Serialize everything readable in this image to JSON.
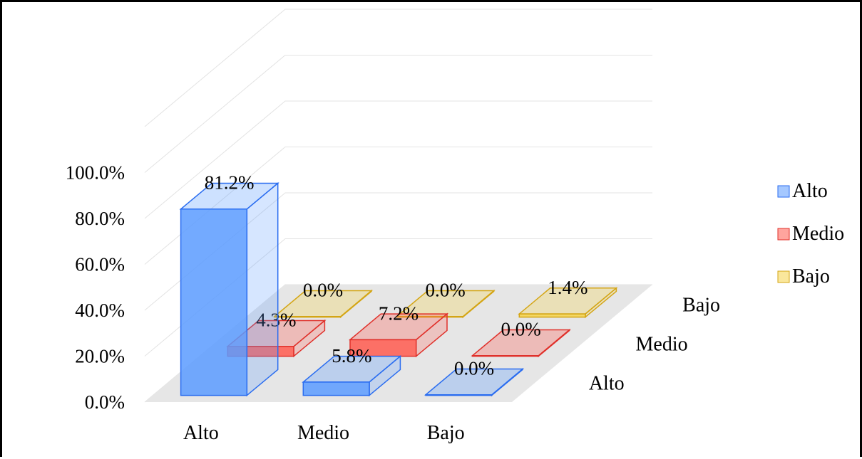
{
  "chart_data": {
    "type": "bar",
    "subtype": "3d-clustered",
    "title": "",
    "x_categories": [
      "Alto",
      "Medio",
      "Bajo"
    ],
    "depth_categories": [
      "Alto",
      "Medio",
      "Bajo"
    ],
    "series": [
      {
        "name": "Alto",
        "color": "#5b9bff",
        "edge": "#2a6df0",
        "values": [
          81.2,
          5.8,
          0.0
        ],
        "labels": [
          "81.2%",
          "5.8%",
          "0.0%"
        ]
      },
      {
        "name": "Medio",
        "color": "#ff5a4f",
        "edge": "#e0302a",
        "values": [
          4.3,
          7.2,
          0.0
        ],
        "labels": [
          "4.3%",
          "7.2%",
          "0.0%"
        ]
      },
      {
        "name": "Bajo",
        "color": "#f6d34b",
        "edge": "#d4a514",
        "values": [
          0.0,
          0.0,
          1.4
        ],
        "labels": [
          "0.0%",
          "0.0%",
          "1.4%"
        ]
      }
    ],
    "y_ticks": [
      "0.0%",
      "20.0%",
      "40.0%",
      "60.0%",
      "80.0%",
      "100.0%"
    ],
    "ylim": [
      0,
      100
    ],
    "legend": {
      "position": "right",
      "items": [
        "Alto",
        "Medio",
        "Bajo"
      ]
    },
    "grid": true
  }
}
